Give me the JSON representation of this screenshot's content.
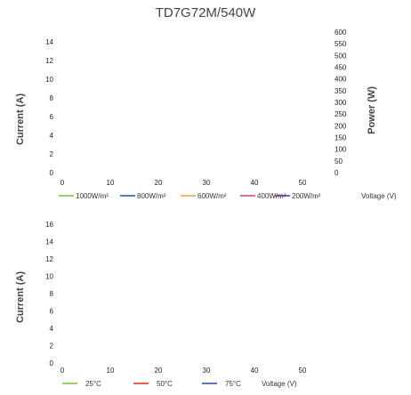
{
  "chart_data": [
    {
      "type": "line",
      "title": "TD7G72M/540W",
      "xlabel": "Voltage (V)",
      "ylabel": "Current (A)",
      "y2label": "Power (W)",
      "xlim": [
        0,
        50
      ],
      "ylim": [
        0,
        14
      ],
      "y2lim": [
        0,
        600
      ],
      "x_ticks": [
        "0",
        "10",
        "20",
        "30",
        "40",
        "50"
      ],
      "y_ticks": [
        "0",
        "2",
        "4",
        "6",
        "8",
        "10",
        "12",
        "14"
      ],
      "y2_ticks": [
        "0",
        "50",
        "100",
        "150",
        "200",
        "250",
        "300",
        "350",
        "400",
        "450",
        "500",
        "550",
        "600"
      ],
      "grid": false,
      "legend_position": "bottom",
      "series": [
        {
          "name": "1000W/m²",
          "color": "#7bbf3a",
          "values": []
        },
        {
          "name": "800W/m²",
          "color": "#1f4e9a",
          "values": []
        },
        {
          "name": "600W/m²",
          "color": "#f0a23a",
          "values": []
        },
        {
          "name": "400W/m²",
          "color": "#d13a8a",
          "values": []
        },
        {
          "name": "200W/m²",
          "color": "#6a2c91",
          "values": []
        }
      ]
    },
    {
      "type": "line",
      "title": "",
      "xlabel": "Voltage (V)",
      "ylabel": "Current (A)",
      "xlim": [
        0,
        50
      ],
      "ylim": [
        0,
        16
      ],
      "x_ticks": [
        "0",
        "10",
        "20",
        "30",
        "40",
        "50"
      ],
      "y_ticks": [
        "0",
        "2",
        "4",
        "6",
        "8",
        "10",
        "12",
        "14",
        "16"
      ],
      "grid": false,
      "legend_position": "bottom",
      "series": [
        {
          "name": "25°C",
          "color": "#7bbf3a",
          "values": []
        },
        {
          "name": "50°C",
          "color": "#e02a1f",
          "values": []
        },
        {
          "name": "75°C",
          "color": "#1f4e9a",
          "values": []
        }
      ]
    }
  ]
}
